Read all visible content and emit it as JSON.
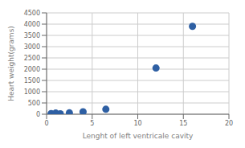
{
  "chart_data": {
    "type": "scatter",
    "x": [
      0.5,
      1.0,
      1.5,
      2.5,
      4.0,
      6.5,
      12.0,
      16.0
    ],
    "values": [
      30,
      50,
      20,
      60,
      110,
      220,
      2050,
      3900
    ],
    "xlabel": "Lenght of left ventricale cavity",
    "ylabel": "Heart weight(grams)",
    "xlim": [
      0,
      20
    ],
    "ylim": [
      0,
      4500
    ],
    "xticks": [
      0,
      5,
      10,
      15,
      20
    ],
    "yticks": [
      0,
      500,
      1000,
      1500,
      2000,
      2500,
      3000,
      3500,
      4000,
      4500
    ],
    "color": "#2e5fa3",
    "grid": true
  }
}
